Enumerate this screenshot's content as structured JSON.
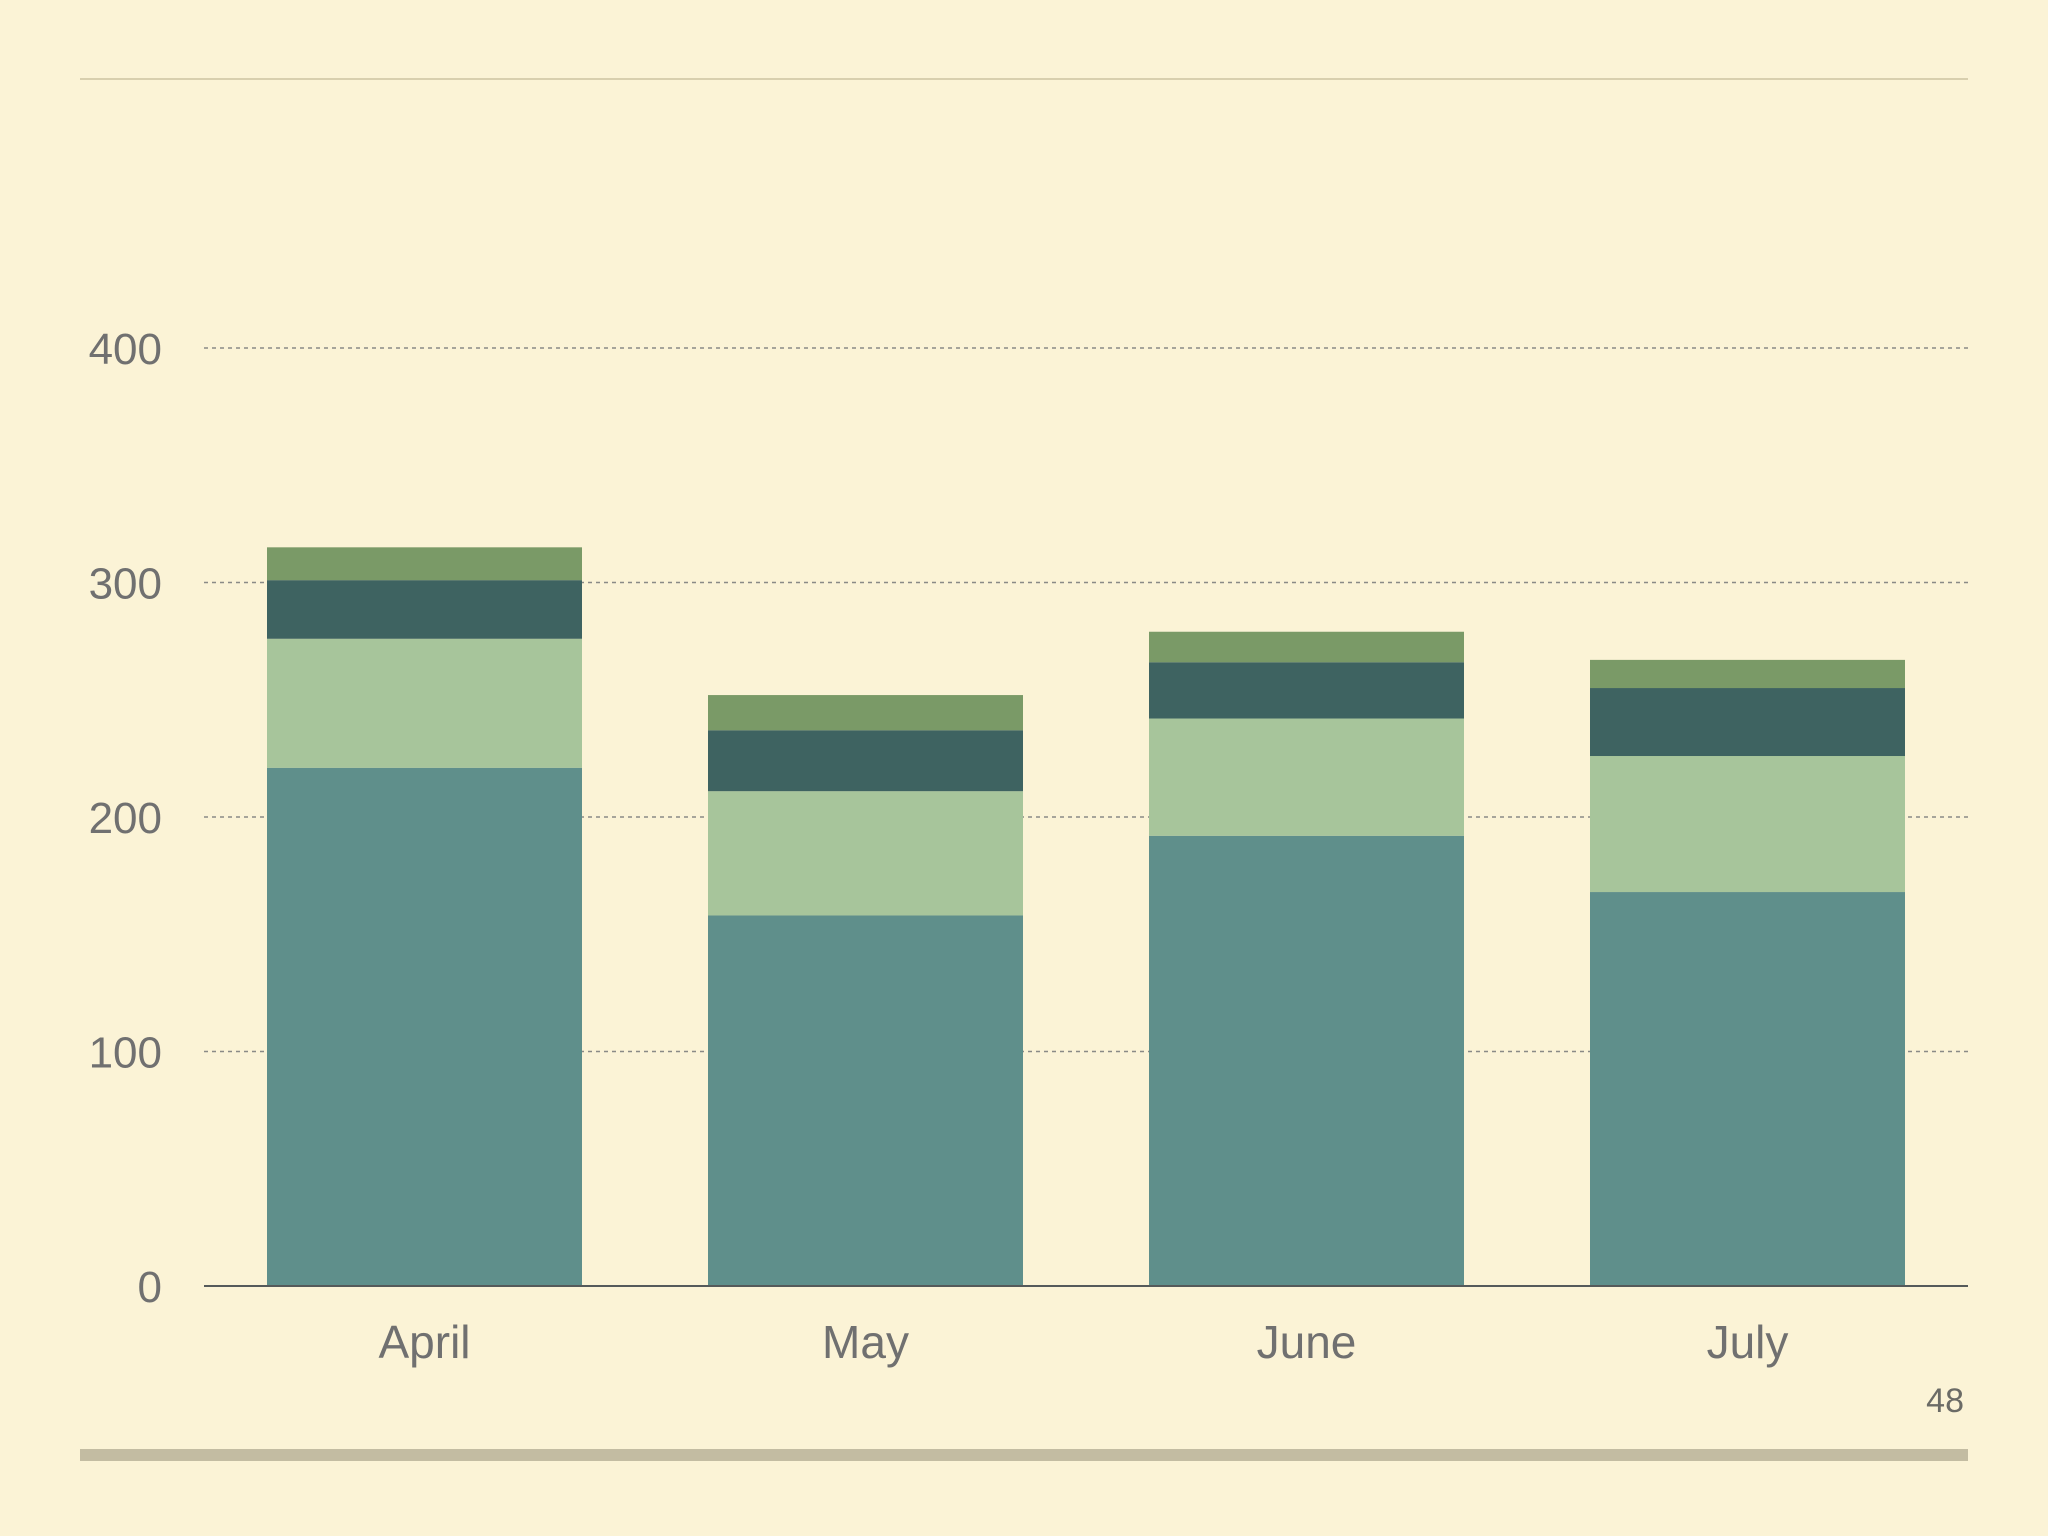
{
  "page": {
    "page_number": "48"
  },
  "chart_data": {
    "type": "bar",
    "stacked": true,
    "title": "",
    "xlabel": "",
    "ylabel": "",
    "ylim": [
      0,
      400
    ],
    "yticks": [
      "0",
      "100",
      "200",
      "300",
      "400"
    ],
    "grid": true,
    "categories": [
      "April",
      "May",
      "June",
      "July"
    ],
    "series": [
      {
        "color": "#5f8f8b",
        "values": [
          221,
          158,
          192,
          168
        ]
      },
      {
        "color": "#a7c59b",
        "values": [
          55,
          53,
          50,
          58
        ]
      },
      {
        "color": "#3e6361",
        "values": [
          25,
          26,
          24,
          29
        ]
      },
      {
        "color": "#7a9a67",
        "values": [
          14,
          15,
          13,
          12
        ]
      }
    ],
    "colors": {
      "background": "#fbf3d6",
      "axis": "#555a5a",
      "grid": "#8a8a86",
      "text": "#707070"
    }
  }
}
